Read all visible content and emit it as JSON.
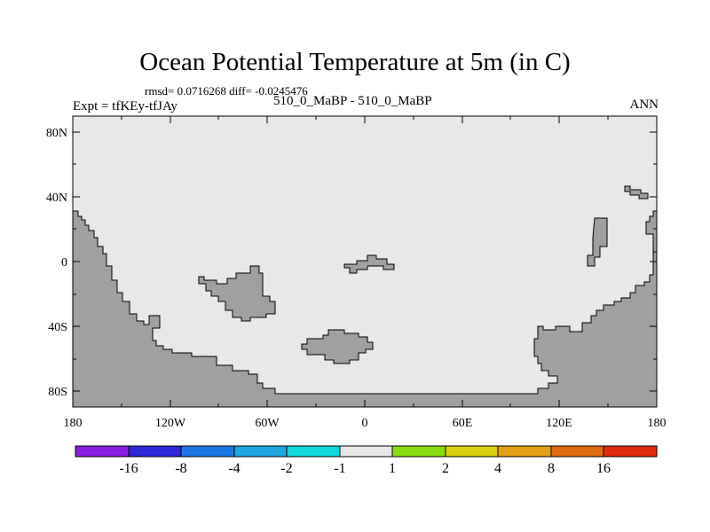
{
  "title": "Ocean Potential Temperature at 5m (in C)",
  "stats": "rmsd= 0.0716268 diff= -0.0245476",
  "experiment": "Expt = tfKEy-tfJAy",
  "case_label": "510_0_MaBP - 510_0_MaBP",
  "season": "ANN",
  "map": {
    "ocean_color": "#e8e8e8",
    "land_color": "#a0a0a0",
    "lat_labels": [
      "80N",
      "40N",
      "0",
      "40S",
      "80S"
    ],
    "lon_labels": [
      "180",
      "120W",
      "60W",
      "0",
      "60E",
      "120E",
      "180"
    ]
  },
  "colorbar": {
    "colors": [
      "#8a1ee0",
      "#2d28d8",
      "#1c78e6",
      "#1ca8e0",
      "#10d8d8",
      "#e8e8e8",
      "#88dc10",
      "#dcd010",
      "#e4a010",
      "#e26a10",
      "#e02c10"
    ],
    "labels": [
      "-16",
      "-8",
      "-4",
      "-2",
      "-1",
      "1",
      "2",
      "4",
      "8",
      "16"
    ]
  }
}
